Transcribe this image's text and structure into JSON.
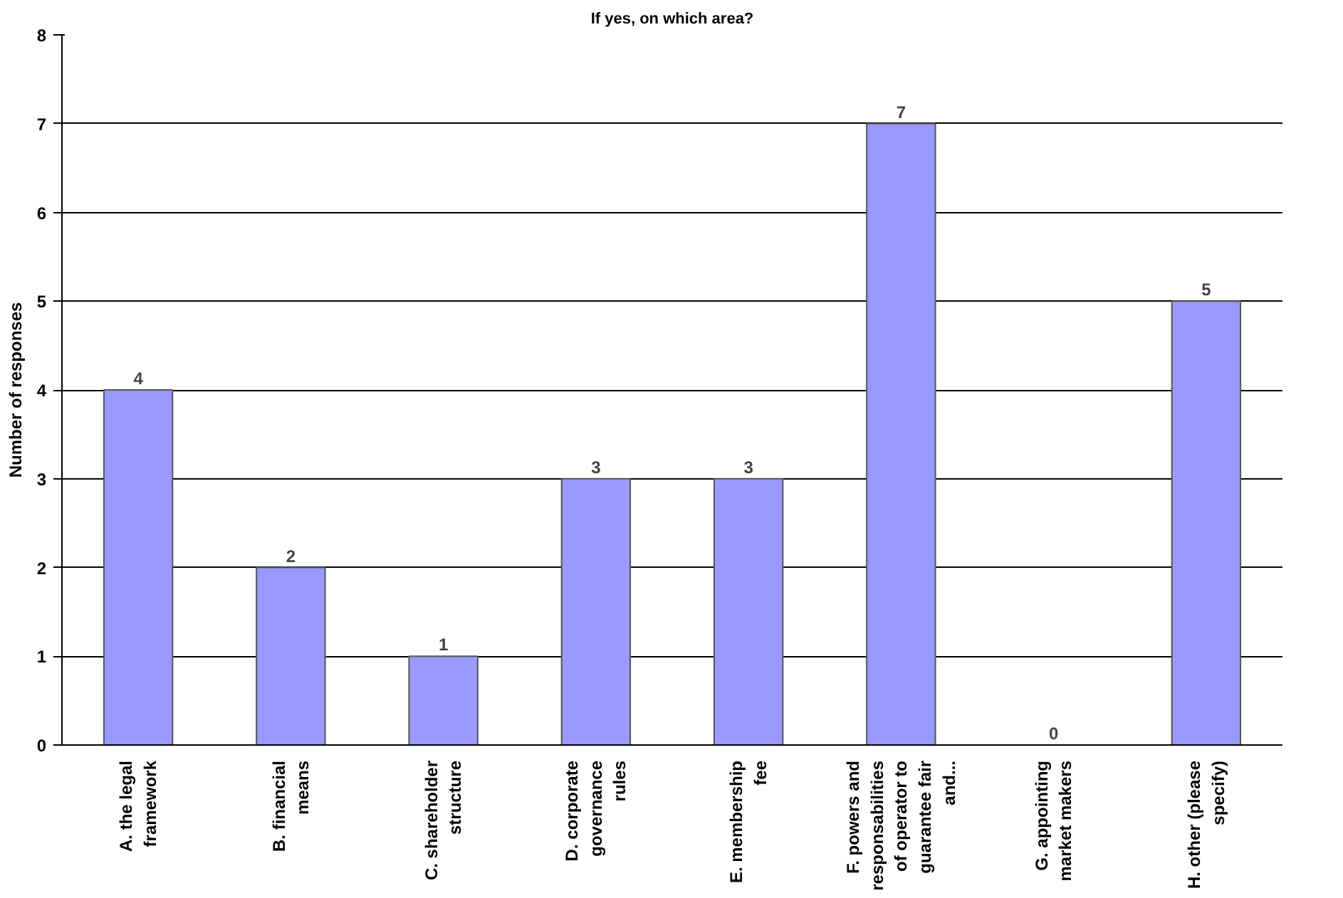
{
  "chart_data": {
    "type": "bar",
    "title": "If yes, on which area?",
    "ylabel": "Number of responses",
    "categories": [
      "A. the legal\nframework",
      "B. financial\nmeans",
      "C. shareholder\nstructure",
      "D. corporate\ngovernance\nrules",
      "E. membership\nfee",
      "F. powers and\nresponsabilities\nof operator to\nguarantee fair\nand...",
      "G. appointing\nmarket makers",
      "H. other (please\nspecify)"
    ],
    "values": [
      4,
      2,
      1,
      3,
      3,
      7,
      0,
      5
    ],
    "color": "#9999ff",
    "ylim": [
      0,
      8
    ],
    "yticks": [
      0,
      1,
      2,
      3,
      4,
      5,
      6,
      7,
      8
    ],
    "grid": "y",
    "data_labels": true
  }
}
